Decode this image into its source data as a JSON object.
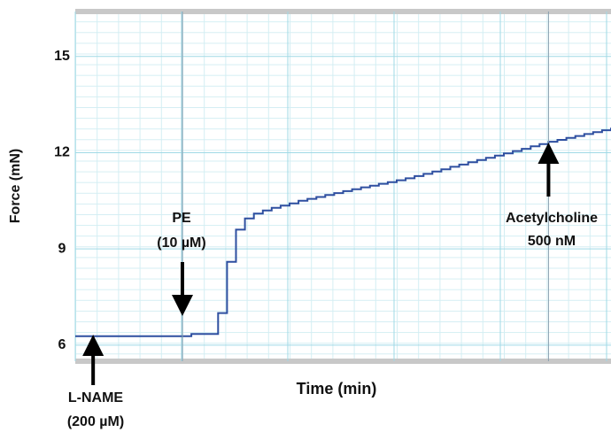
{
  "chart_data": {
    "type": "line",
    "x_label": "Time (min)",
    "y_label": "Force (mN)",
    "ylim": [
      5.5,
      16.4
    ],
    "yticks": [
      6,
      9,
      12,
      15
    ],
    "grid": true,
    "color": "#2e4fa0",
    "values": [
      6.28,
      6.28,
      6.28,
      6.28,
      6.28,
      6.28,
      6.28,
      6.28,
      6.28,
      6.28,
      6.28,
      6.28,
      6.28,
      6.35,
      6.35,
      6.35,
      7.0,
      8.6,
      9.6,
      9.95,
      10.1,
      10.2,
      10.28,
      10.35,
      10.42,
      10.5,
      10.56,
      10.62,
      10.68,
      10.74,
      10.8,
      10.86,
      10.92,
      10.97,
      11.03,
      11.08,
      11.14,
      11.2,
      11.27,
      11.34,
      11.41,
      11.48,
      11.56,
      11.63,
      11.7,
      11.77,
      11.84,
      11.91,
      11.98,
      12.05,
      12.12,
      12.2,
      12.27,
      12.34,
      12.4,
      12.46,
      12.52,
      12.58,
      12.64,
      12.7,
      12.78
    ],
    "annotations": [
      {
        "lines": [
          "L-NAME",
          "(200 µM)"
        ]
      },
      {
        "lines": [
          "PE",
          "(10 µM)"
        ]
      },
      {
        "lines": [
          "Acetylcholine",
          "500 nM"
        ]
      }
    ]
  }
}
